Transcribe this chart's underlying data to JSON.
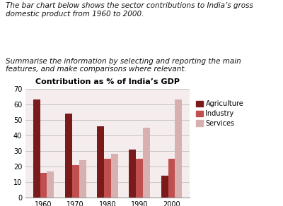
{
  "title": "Contribution as % of India’s GDP",
  "years": [
    "1960",
    "1970",
    "1980",
    "1990",
    "2000"
  ],
  "agriculture": [
    63,
    54,
    46,
    31,
    14
  ],
  "industry": [
    16,
    21,
    25,
    25,
    25
  ],
  "services": [
    17,
    24,
    28,
    45,
    63
  ],
  "colors": {
    "agriculture": "#7B1A1A",
    "industry": "#C05050",
    "services": "#D8B0B0"
  },
  "legend_labels": [
    "Agriculture",
    "Industry",
    "Services"
  ],
  "ylim": [
    0,
    70
  ],
  "yticks": [
    0,
    10,
    20,
    30,
    40,
    50,
    60,
    70
  ],
  "bar_width": 0.22,
  "text1": "The bar chart below shows the sector contributions to India’s gross\ndomestic product from 1960 to 2000.",
  "text2": "Summarise the information by selecting and reporting the main\nfeatures, and make comparisons where relevant.",
  "fig_bg": "#FFFFFF",
  "chart_bg": "#F5EDED",
  "title_fontsize": 8,
  "tick_fontsize": 7,
  "legend_fontsize": 7
}
